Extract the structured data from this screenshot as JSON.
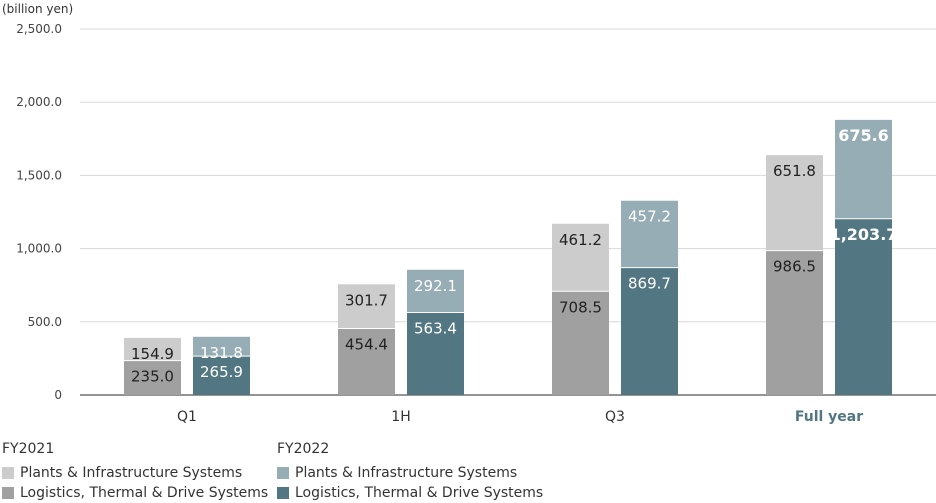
{
  "chart_data": {
    "type": "bar",
    "stacked": true,
    "unit_label": "(billion yen)",
    "categories": [
      "Q1",
      "1H",
      "Q3",
      "Full year"
    ],
    "highlight_category": "Full year",
    "ylim": [
      0,
      2500
    ],
    "yticks": [
      "0",
      "500.0",
      "1,000.0",
      "1,500.0",
      "2,000.0",
      "2,500.0"
    ],
    "grid": true,
    "legend_position": "bottom-left",
    "groups": [
      {
        "name": "FY2021",
        "series": [
          {
            "name": "Logistics, Thermal & Drive Systems",
            "color": "#a0a0a0",
            "values": [
              235.0,
              454.4,
              708.5,
              986.5
            ],
            "labels": [
              "235.0",
              "454.4",
              "708.5",
              "986.5"
            ]
          },
          {
            "name": "Plants & Infrastructure Systems",
            "color": "#cccccc",
            "values": [
              154.9,
              301.7,
              461.2,
              651.8
            ],
            "labels": [
              "154.9",
              "301.7",
              "461.2",
              "651.8"
            ]
          }
        ]
      },
      {
        "name": "FY2022",
        "series": [
          {
            "name": "Logistics, Thermal & Drive Systems",
            "color": "#527682",
            "values": [
              265.9,
              563.4,
              869.7,
              1203.7
            ],
            "labels": [
              "265.9",
              "563.4",
              "869.7",
              "1,203.7"
            ]
          },
          {
            "name": "Plants & Infrastructure Systems",
            "color": "#97adb5",
            "values": [
              131.8,
              292.1,
              457.2,
              675.6
            ],
            "labels": [
              "131.8",
              "292.1",
              "457.2",
              "675.6"
            ]
          }
        ]
      }
    ]
  },
  "legend": {
    "fy2021": {
      "title": "FY2021",
      "plants_label": "Plants & Infrastructure Systems",
      "logistics_label": "Logistics, Thermal & Drive Systems",
      "plants_color": "#cccccc",
      "logistics_color": "#a0a0a0"
    },
    "fy2022": {
      "title": "FY2022",
      "plants_label": "Plants & Infrastructure Systems",
      "logistics_label": "Logistics, Thermal & Drive Systems",
      "plants_color": "#97adb5",
      "logistics_color": "#527682"
    }
  }
}
